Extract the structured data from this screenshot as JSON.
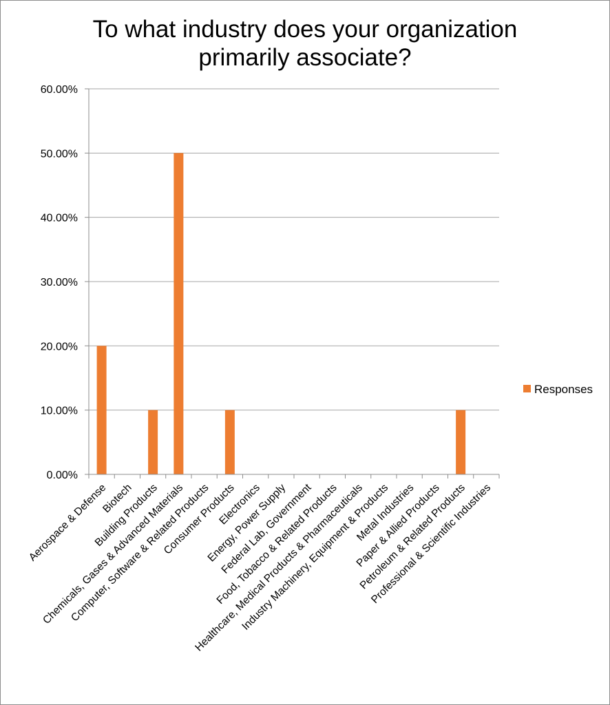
{
  "chart_data": {
    "type": "bar",
    "title": "To what industry does your organization primarily associate?",
    "title_lines": [
      "To what industry does your organization",
      "primarily associate?"
    ],
    "xlabel": "",
    "ylabel": "",
    "ylim": [
      0,
      60
    ],
    "y_ticks": [
      "0.00%",
      "10.00%",
      "20.00%",
      "30.00%",
      "40.00%",
      "50.00%",
      "60.00%"
    ],
    "grid": true,
    "legend_position": "right",
    "categories": [
      "Aerospace & Defense",
      "Biotech",
      "Building Products",
      "Chemicals, Gases & Advanced Materials",
      "Computer, Software & Related Products",
      "Consumer Products",
      "Electronics",
      "Energy, Power Supply",
      "Federal Lab, Government",
      "Food, Tobacco & Related Products",
      "Healthcare, Medical Products & Pharmaceuticals",
      "Industry Machinery, Equipment & Products",
      "Metal Industries",
      "Paper & Allied Products",
      "Petroleum & Related Products",
      "Professional & Scientific Industries"
    ],
    "series": [
      {
        "name": "Responses",
        "color": "#ed7d31",
        "values": [
          20,
          0,
          10,
          50,
          0,
          10,
          0,
          0,
          0,
          0,
          0,
          0,
          0,
          0,
          10,
          0
        ]
      }
    ]
  }
}
